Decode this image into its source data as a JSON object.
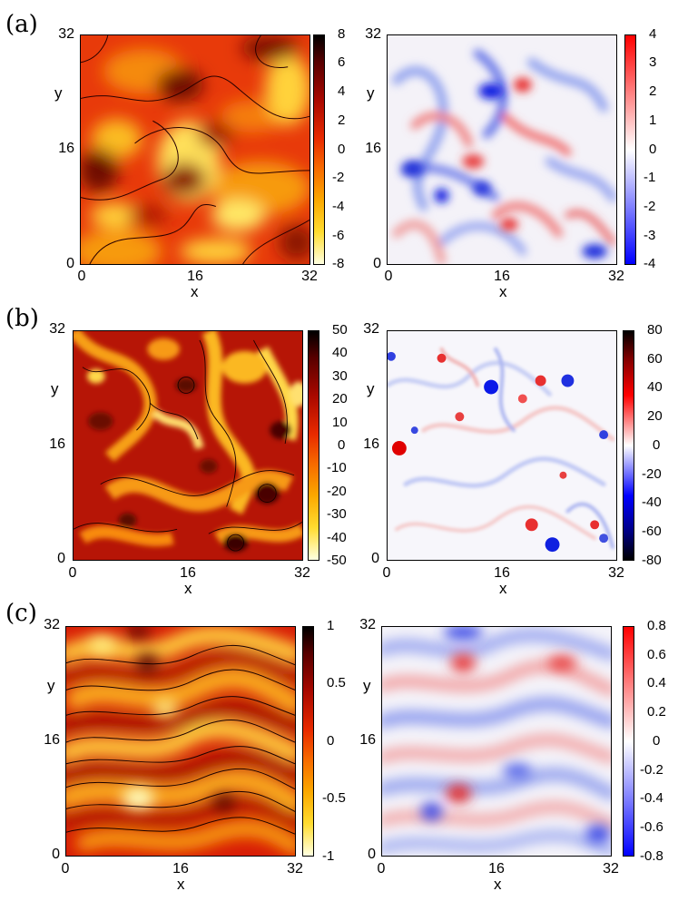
{
  "panels": [
    {
      "label": "(a)",
      "left": {
        "xlabel": "x",
        "ylabel": "y",
        "xticks": [
          "0",
          "16",
          "32"
        ],
        "yticks": [
          "0",
          "16",
          "32"
        ],
        "colormap": "hot-reversed",
        "colorbar_ticks": [
          "8",
          "6",
          "4",
          "2",
          "0",
          "-2",
          "-4",
          "-6",
          "-8"
        ]
      },
      "right": {
        "xlabel": "x",
        "ylabel": "y",
        "xticks": [
          "0",
          "16",
          "32"
        ],
        "yticks": [
          "0",
          "16",
          "32"
        ],
        "colormap": "blue-white-red",
        "colorbar_ticks": [
          "4",
          "3",
          "2",
          "1",
          "0",
          "-1",
          "-2",
          "-3",
          "-4"
        ]
      }
    },
    {
      "label": "(b)",
      "left": {
        "xlabel": "x",
        "ylabel": "y",
        "xticks": [
          "0",
          "16",
          "32"
        ],
        "yticks": [
          "0",
          "16",
          "32"
        ],
        "colormap": "hot-reversed",
        "colorbar_ticks": [
          "50",
          "40",
          "30",
          "20",
          "10",
          "0",
          "-10",
          "-20",
          "-30",
          "-40",
          "-50"
        ]
      },
      "right": {
        "xlabel": "x",
        "ylabel": "y",
        "xticks": [
          "0",
          "16",
          "32"
        ],
        "yticks": [
          "0",
          "16",
          "32"
        ],
        "colormap": "black-blue-white-red-black",
        "colorbar_ticks": [
          "80",
          "60",
          "40",
          "20",
          "0",
          "-20",
          "-40",
          "-60",
          "-80"
        ]
      }
    },
    {
      "label": "(c)",
      "left": {
        "xlabel": "x",
        "ylabel": "y",
        "xticks": [
          "0",
          "16",
          "32"
        ],
        "yticks": [
          "0",
          "16",
          "32"
        ],
        "colormap": "hot-reversed",
        "colorbar_ticks": [
          "1",
          "0.5",
          "0",
          "-0.5",
          "-1"
        ]
      },
      "right": {
        "xlabel": "x",
        "ylabel": "y",
        "xticks": [
          "0",
          "16",
          "32"
        ],
        "yticks": [
          "0",
          "16",
          "32"
        ],
        "colormap": "blue-white-red",
        "colorbar_ticks": [
          "0.8",
          "0.6",
          "0.4",
          "0.2",
          "0",
          "-0.2",
          "-0.4",
          "-0.6",
          "-0.8"
        ]
      }
    }
  ],
  "chart_data": [
    {
      "type": "heatmap",
      "panel": "(a)",
      "x_range": [
        0,
        32
      ],
      "y_range": [
        0,
        32
      ],
      "colorbar_range": [
        -8,
        8
      ],
      "contours": true
    },
    {
      "type": "heatmap",
      "panel": "(a)",
      "x_range": [
        0,
        32
      ],
      "y_range": [
        0,
        32
      ],
      "colorbar_range": [
        -4,
        4
      ],
      "contours": false
    },
    {
      "type": "heatmap",
      "panel": "(b)",
      "x_range": [
        0,
        32
      ],
      "y_range": [
        0,
        32
      ],
      "colorbar_range": [
        -50,
        50
      ],
      "contours": true
    },
    {
      "type": "heatmap",
      "panel": "(b)",
      "x_range": [
        0,
        32
      ],
      "y_range": [
        0,
        32
      ],
      "colorbar_range": [
        -80,
        80
      ],
      "contours": false
    },
    {
      "type": "heatmap",
      "panel": "(c)",
      "x_range": [
        0,
        32
      ],
      "y_range": [
        0,
        32
      ],
      "colorbar_range": [
        -1,
        1
      ],
      "contours": true
    },
    {
      "type": "heatmap",
      "panel": "(c)",
      "x_range": [
        0,
        32
      ],
      "y_range": [
        0,
        32
      ],
      "colorbar_range": [
        -0.8,
        0.8
      ],
      "contours": false
    }
  ]
}
